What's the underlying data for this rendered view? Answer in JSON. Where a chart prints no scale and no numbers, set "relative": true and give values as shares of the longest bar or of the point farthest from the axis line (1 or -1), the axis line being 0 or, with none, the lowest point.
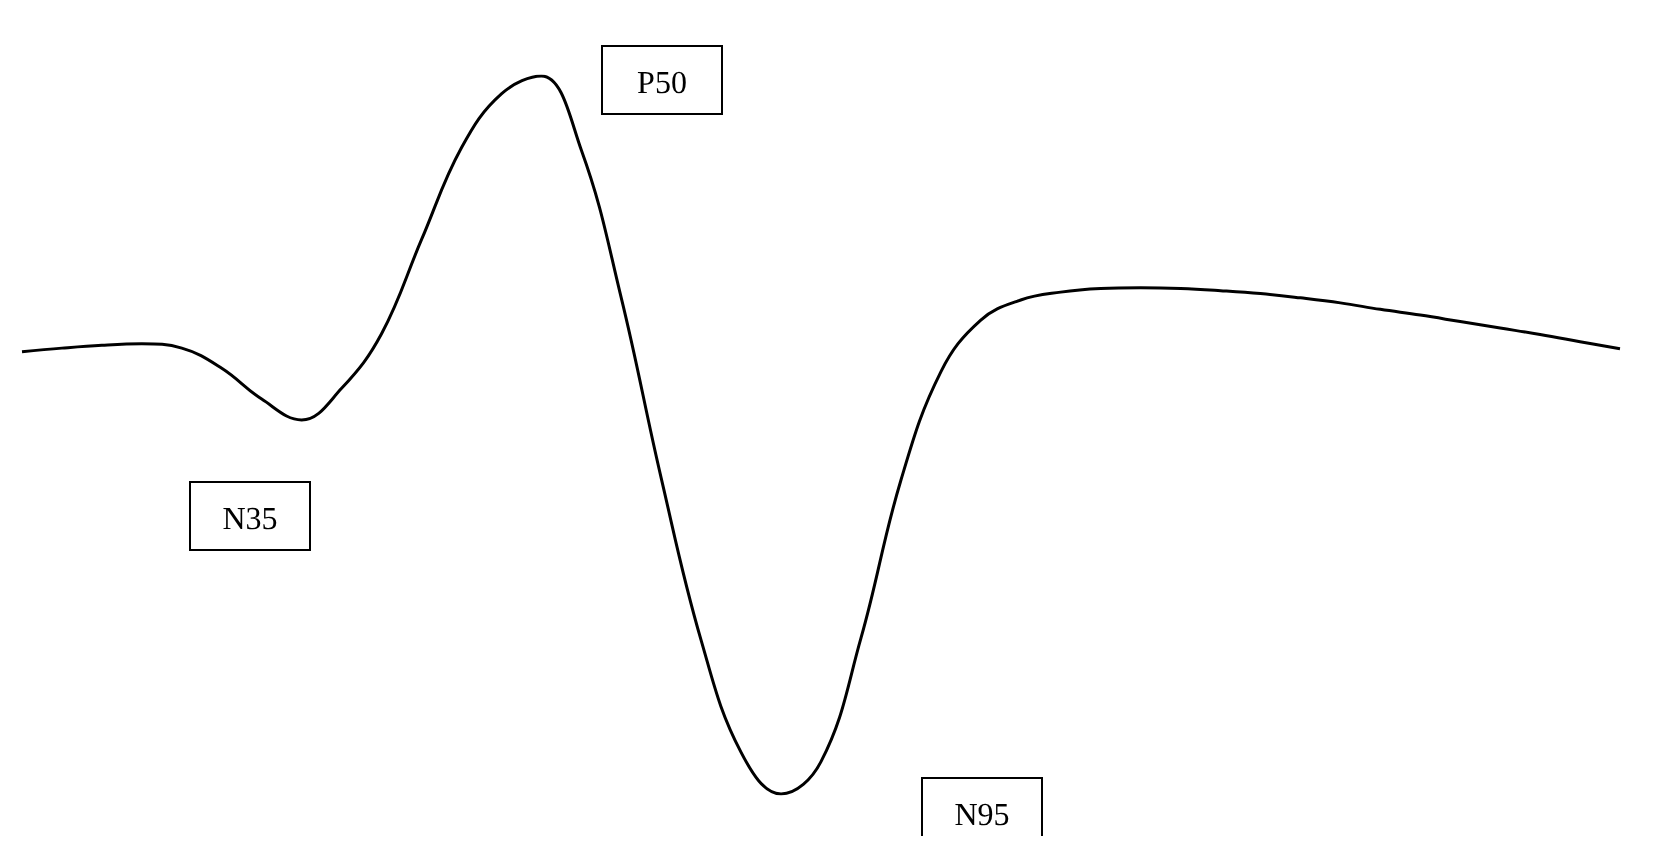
{
  "chart_data": {
    "type": "line",
    "relative": true,
    "color": "#000000",
    "marker": "none",
    "grid": false,
    "categories": [
      null,
      null,
      null,
      null,
      null,
      null,
      null,
      null,
      null,
      null,
      null,
      null,
      null,
      null,
      null,
      null,
      null,
      null,
      null,
      null,
      null,
      null,
      null,
      null,
      null,
      null,
      null,
      null,
      null,
      null,
      null,
      null,
      null,
      null,
      null,
      null,
      null,
      null,
      null,
      null,
      null
    ],
    "values": [
      0.616,
      0.621,
      0.625,
      0.627,
      0.621,
      0.593,
      0.55,
      0.521,
      0.565,
      0.641,
      0.772,
      0.9,
      0.975,
      1,
      0.897,
      0.691,
      0.44,
      0.214,
      0.058,
      0,
      0.045,
      0.217,
      0.437,
      0.588,
      0.66,
      0.688,
      0.699,
      0.704,
      0.705,
      0.704,
      0.701,
      0.697,
      0.691,
      0.684,
      0.675,
      0.667,
      0.658,
      0.649,
      0.64,
      0.63,
      0.62
    ],
    "annotations": [
      "P50",
      "N35",
      "N95"
    ]
  }
}
